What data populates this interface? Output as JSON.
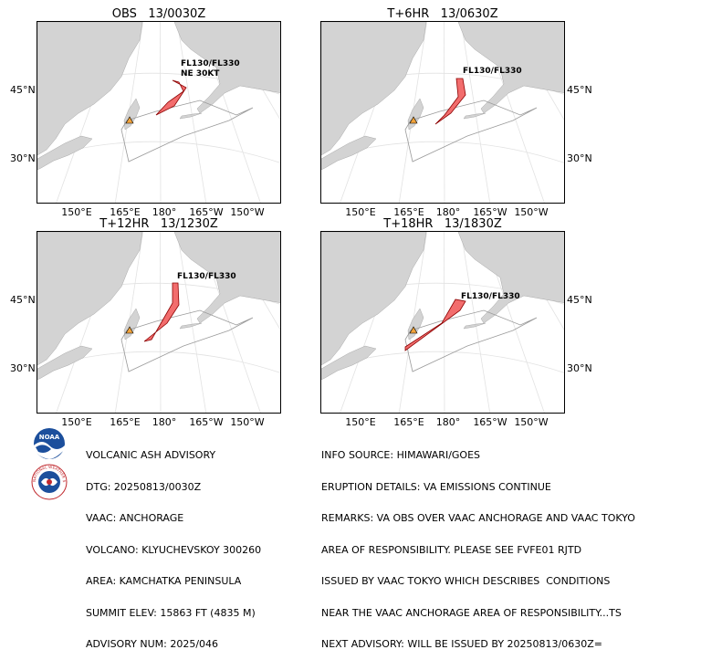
{
  "panels": [
    {
      "title": "OBS   13/0030Z",
      "fl_label": "FL130/FL330\nNE 30KT"
    },
    {
      "title": "T+6HR   13/0630Z",
      "fl_label": "FL130/FL330"
    },
    {
      "title": "T+12HR   13/1230Z",
      "fl_label": "FL130/FL330"
    },
    {
      "title": "T+18HR   13/1830Z",
      "fl_label": "FL130/FL330"
    }
  ],
  "lat_labels": [
    "45°N",
    "30°N"
  ],
  "lon_labels": [
    "150°E",
    "165°E",
    "180°",
    "165°W",
    "150°W"
  ],
  "advisory_left": [
    "VOLCANIC ASH ADVISORY",
    "DTG: 20250813/0030Z",
    "VAAC: ANCHORAGE",
    "VOLCANO: KLYUCHEVSKOY 300260",
    "AREA: KAMCHATKA PENINSULA",
    "SUMMIT ELEV: 15863 FT (4835 M)",
    "ADVISORY NUM: 2025/046"
  ],
  "advisory_right": [
    "INFO SOURCE: HIMAWARI/GOES",
    "ERUPTION DETAILS: VA EMISSIONS CONTINUE",
    "REMARKS: VA OBS OVER VAAC ANCHORAGE AND VAAC TOKYO",
    "AREA OF RESPONSIBILITY. PLEASE SEE FVFE01 RJTD",
    "ISSUED BY VAAC TOKYO WHICH DESCRIBES  CONDITIONS",
    "NEAR THE VAAC ANCHORAGE AREA OF RESPONSIBILITY...TS",
    "NEXT ADVISORY: WILL BE ISSUED BY 20250813/0630Z="
  ],
  "logos": {
    "noaa": "NOAA",
    "nws": "NATIONAL WEATHER SERVICE"
  },
  "colors": {
    "land": "#d3d3d3",
    "ash": "#f26d6d",
    "ash_edge": "#8b0000",
    "volcano": "#f2a33a"
  }
}
